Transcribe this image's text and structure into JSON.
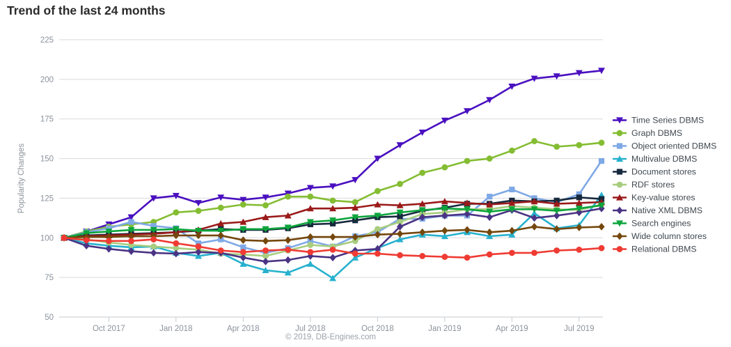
{
  "title": "Trend of the last 24 months",
  "footer": "© 2019, DB-Engines.com",
  "colors": {
    "grid": "#d9d9d9",
    "axis_line": "#c6cacf",
    "axis_text": "#8b929b",
    "title_text": "#2a2a2a",
    "legend_text": "#3f474f",
    "footer_text": "#9aa2aa"
  },
  "chart_data": {
    "type": "line",
    "title": "Trend of the last 24 months",
    "xlabel": "",
    "ylabel": "Popularity Changes",
    "ylim": [
      50,
      225
    ],
    "yticks": [
      225,
      200,
      175,
      150,
      125,
      100,
      75,
      50
    ],
    "grid": true,
    "legend_position": "right",
    "n_points": 25,
    "x_tick_labels": [
      "Oct 2017",
      "Jan 2018",
      "Apr 2018",
      "Jul 2018",
      "Oct 2018",
      "Jan 2019",
      "Apr 2019",
      "Jul 2019"
    ],
    "x_tick_point_indices": [
      2,
      5,
      8,
      11,
      14,
      17,
      20,
      23
    ],
    "series": [
      {
        "name": "Time Series DBMS",
        "color": "#4a10c0",
        "marker": "triangle-down",
        "values": [
          100,
          104,
          108.5,
          113,
          125,
          126.5,
          122,
          125.5,
          124,
          125.5,
          128,
          131.5,
          132.5,
          136.5,
          150,
          158.5,
          166.5,
          174,
          180,
          187,
          195.5,
          200.5,
          202,
          204,
          205.5
        ]
      },
      {
        "name": "Graph DBMS",
        "color": "#84bd32",
        "marker": "circle",
        "values": [
          100,
          104,
          107,
          108.5,
          110,
          116,
          117,
          119,
          121,
          120.5,
          126,
          126,
          123.5,
          122.5,
          129.5,
          134,
          141,
          144.5,
          148.5,
          150,
          155,
          161,
          157.5,
          158.5,
          160
        ]
      },
      {
        "name": "Object oriented DBMS",
        "color": "#7fa9e6",
        "marker": "square",
        "values": [
          100,
          103.5,
          106,
          110,
          107.5,
          106,
          96.5,
          99,
          94,
          90.5,
          93.5,
          98,
          94.5,
          101,
          103.5,
          112,
          112,
          114,
          114,
          126,
          130.5,
          125,
          122.5,
          127.5,
          148.5
        ]
      },
      {
        "name": "Multivalue DBMS",
        "color": "#27b1ce",
        "marker": "triangle-up",
        "values": [
          100,
          96.5,
          95,
          94,
          94.5,
          90.5,
          88.5,
          90.5,
          83.5,
          79.5,
          78,
          83.5,
          74.5,
          87.5,
          93.5,
          99,
          102,
          101,
          103.5,
          101,
          102,
          115.5,
          106,
          108,
          127
        ]
      },
      {
        "name": "Document stores",
        "color": "#17293e",
        "marker": "square",
        "values": [
          100,
          101.5,
          102,
          102.5,
          103,
          103.5,
          104.5,
          105.5,
          105,
          105,
          106,
          108.5,
          109,
          111,
          113,
          113.5,
          117,
          119,
          121.5,
          121.5,
          123.5,
          123,
          123.5,
          125.5,
          124.5
        ]
      },
      {
        "name": "RDF stores",
        "color": "#a8cd7f",
        "marker": "circle",
        "values": [
          100,
          99,
          97,
          95.5,
          94.5,
          93.5,
          92.5,
          90,
          89.5,
          88.5,
          92,
          95.5,
          94.5,
          98,
          105.5,
          110,
          115,
          116,
          118,
          118,
          120,
          119,
          118,
          117.5,
          121
        ]
      },
      {
        "name": "Key-value stores",
        "color": "#9a1a1a",
        "marker": "triangle-up",
        "values": [
          100,
          101,
          101.5,
          102,
          102.5,
          103.5,
          105,
          109,
          110,
          113,
          114,
          118.5,
          118.5,
          119,
          121,
          120.5,
          121.5,
          123,
          122,
          121,
          122,
          123,
          121.5,
          122,
          122.5
        ]
      },
      {
        "name": "Native XML DBMS",
        "color": "#4a3384",
        "marker": "diamond",
        "values": [
          100,
          95,
          93,
          91.5,
          90.5,
          90,
          91,
          90.5,
          87.5,
          85,
          86,
          88.5,
          87.5,
          92,
          93,
          107,
          113,
          114,
          115,
          113,
          117.5,
          112.5,
          114,
          116,
          118.5
        ]
      },
      {
        "name": "Search engines",
        "color": "#0da53c",
        "marker": "triangle-down",
        "values": [
          100,
          103,
          104,
          105,
          105,
          105.5,
          104.5,
          104.5,
          105.5,
          105.5,
          106.5,
          110,
          111,
          113,
          114,
          116,
          117.5,
          118.5,
          118,
          116.5,
          118,
          118,
          117,
          118.5,
          120.5
        ]
      },
      {
        "name": "Wide column stores",
        "color": "#74470c",
        "marker": "diamond",
        "values": [
          100,
          100.5,
          100.5,
          101,
          101,
          101.5,
          101.5,
          101.5,
          98.5,
          98,
          98.5,
          100.5,
          100.5,
          100.5,
          102,
          102.5,
          103.5,
          104.5,
          105,
          103.5,
          104.5,
          107,
          105.5,
          106.5,
          107
        ]
      },
      {
        "name": "Relational DBMS",
        "color": "#ef3b33",
        "marker": "circle",
        "values": [
          100,
          98.5,
          98,
          98,
          99,
          96.5,
          94.5,
          92,
          91,
          92,
          92.5,
          91,
          92.5,
          90,
          90,
          89,
          88.5,
          88,
          87.5,
          89.5,
          90.5,
          90.5,
          92,
          92.5,
          93.5
        ]
      }
    ]
  }
}
